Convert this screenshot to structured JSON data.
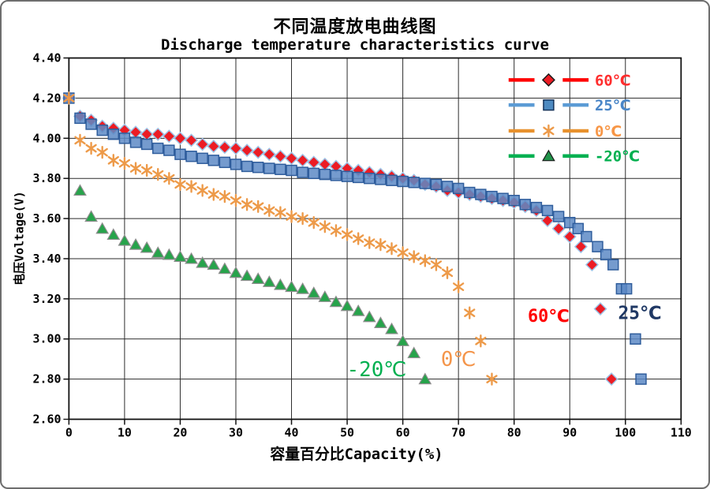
{
  "chart_data": {
    "type": "scatter",
    "title": "不同温度放电曲线图",
    "subtitle": "Discharge temperature characteristics curve",
    "xlabel": "容量百分比Capacity(%)",
    "ylabel": "电压Voltage(V)",
    "xlim": [
      0,
      110
    ],
    "ylim": [
      2.6,
      4.4
    ],
    "xticks": [
      0,
      10,
      20,
      30,
      40,
      50,
      60,
      70,
      80,
      90,
      100,
      110
    ],
    "yticks": [
      4.4,
      4.2,
      4.0,
      3.8,
      3.6,
      3.4,
      3.2,
      3.0,
      2.8,
      2.6
    ],
    "ytick_labels": [
      "4.40",
      "4.20",
      "4.00",
      "3.80",
      "3.60",
      "3.40",
      "3.20",
      "3.00",
      "2.80",
      "2.60"
    ],
    "grid": true,
    "legend_position": "top-right-inside",
    "series": [
      {
        "id": "s60",
        "name": "60℃",
        "marker": "diamond",
        "marker_color": "#EC1C24",
        "marker_stroke": "#9DC3E6",
        "line_color": "#FF0000",
        "label_color": "#FF2D2D",
        "points": [
          [
            0,
            4.2
          ],
          [
            2,
            4.11
          ],
          [
            4,
            4.09
          ],
          [
            6,
            4.06
          ],
          [
            8,
            4.05
          ],
          [
            10,
            4.04
          ],
          [
            12,
            4.03
          ],
          [
            14,
            4.02
          ],
          [
            16,
            4.02
          ],
          [
            18,
            4.01
          ],
          [
            20,
            4.0
          ],
          [
            22,
            3.99
          ],
          [
            24,
            3.97
          ],
          [
            26,
            3.96
          ],
          [
            28,
            3.955
          ],
          [
            30,
            3.95
          ],
          [
            32,
            3.94
          ],
          [
            34,
            3.93
          ],
          [
            36,
            3.92
          ],
          [
            38,
            3.91
          ],
          [
            40,
            3.9
          ],
          [
            42,
            3.89
          ],
          [
            44,
            3.88
          ],
          [
            46,
            3.87
          ],
          [
            48,
            3.86
          ],
          [
            50,
            3.85
          ],
          [
            52,
            3.84
          ],
          [
            54,
            3.83
          ],
          [
            56,
            3.82
          ],
          [
            58,
            3.81
          ],
          [
            60,
            3.8
          ],
          [
            62,
            3.79
          ],
          [
            64,
            3.77
          ],
          [
            66,
            3.76
          ],
          [
            68,
            3.74
          ],
          [
            70,
            3.73
          ],
          [
            72,
            3.72
          ],
          [
            74,
            3.71
          ],
          [
            76,
            3.7
          ],
          [
            78,
            3.69
          ],
          [
            80,
            3.68
          ],
          [
            82,
            3.66
          ],
          [
            84,
            3.64
          ],
          [
            86,
            3.59
          ],
          [
            88,
            3.55
          ],
          [
            90,
            3.51
          ],
          [
            92,
            3.46
          ],
          [
            94,
            3.37
          ],
          [
            95.5,
            3.15
          ],
          [
            97.5,
            2.8
          ]
        ]
      },
      {
        "id": "s25",
        "name": "25℃",
        "marker": "square",
        "marker_color": "#5D8AC6",
        "marker_stroke": "#2F5D9C",
        "line_color": "#5B9BD5",
        "label_color": "#4A86C8",
        "points": [
          [
            0,
            4.2
          ],
          [
            2,
            4.1
          ],
          [
            4,
            4.07
          ],
          [
            6,
            4.04
          ],
          [
            8,
            4.02
          ],
          [
            10,
            4.0
          ],
          [
            12,
            3.98
          ],
          [
            14,
            3.97
          ],
          [
            16,
            3.95
          ],
          [
            18,
            3.94
          ],
          [
            20,
            3.92
          ],
          [
            22,
            3.91
          ],
          [
            24,
            3.9
          ],
          [
            26,
            3.89
          ],
          [
            28,
            3.88
          ],
          [
            30,
            3.87
          ],
          [
            32,
            3.86
          ],
          [
            34,
            3.855
          ],
          [
            36,
            3.85
          ],
          [
            38,
            3.845
          ],
          [
            40,
            3.84
          ],
          [
            42,
            3.83
          ],
          [
            44,
            3.825
          ],
          [
            46,
            3.82
          ],
          [
            48,
            3.815
          ],
          [
            50,
            3.81
          ],
          [
            52,
            3.805
          ],
          [
            54,
            3.8
          ],
          [
            56,
            3.795
          ],
          [
            58,
            3.79
          ],
          [
            60,
            3.785
          ],
          [
            62,
            3.78
          ],
          [
            64,
            3.775
          ],
          [
            66,
            3.77
          ],
          [
            68,
            3.76
          ],
          [
            70,
            3.75
          ],
          [
            72,
            3.73
          ],
          [
            74,
            3.72
          ],
          [
            76,
            3.71
          ],
          [
            78,
            3.7
          ],
          [
            80,
            3.69
          ],
          [
            82,
            3.67
          ],
          [
            84,
            3.655
          ],
          [
            86,
            3.64
          ],
          [
            88,
            3.61
          ],
          [
            90,
            3.58
          ],
          [
            91.5,
            3.55
          ],
          [
            93,
            3.51
          ],
          [
            95,
            3.46
          ],
          [
            96.5,
            3.42
          ],
          [
            97.8,
            3.37
          ],
          [
            99.3,
            3.25
          ],
          [
            100.2,
            3.25
          ],
          [
            101.8,
            3.0
          ],
          [
            102.8,
            2.8
          ]
        ]
      },
      {
        "id": "s0",
        "name": "0℃",
        "marker": "asterisk",
        "marker_color": "#ED9A49",
        "marker_stroke": "#ED9A49",
        "line_color": "#E8912D",
        "label_color": "#F79646",
        "points": [
          [
            0,
            4.2
          ],
          [
            2,
            3.99
          ],
          [
            4,
            3.95
          ],
          [
            6,
            3.93
          ],
          [
            8,
            3.89
          ],
          [
            10,
            3.875
          ],
          [
            12,
            3.85
          ],
          [
            14,
            3.84
          ],
          [
            16,
            3.82
          ],
          [
            18,
            3.8
          ],
          [
            20,
            3.77
          ],
          [
            22,
            3.76
          ],
          [
            24,
            3.74
          ],
          [
            26,
            3.72
          ],
          [
            28,
            3.71
          ],
          [
            30,
            3.69
          ],
          [
            32,
            3.67
          ],
          [
            34,
            3.66
          ],
          [
            36,
            3.64
          ],
          [
            38,
            3.63
          ],
          [
            40,
            3.61
          ],
          [
            42,
            3.6
          ],
          [
            44,
            3.58
          ],
          [
            46,
            3.56
          ],
          [
            48,
            3.54
          ],
          [
            50,
            3.52
          ],
          [
            52,
            3.5
          ],
          [
            54,
            3.48
          ],
          [
            56,
            3.47
          ],
          [
            58,
            3.45
          ],
          [
            60,
            3.43
          ],
          [
            62,
            3.41
          ],
          [
            64,
            3.39
          ],
          [
            66,
            3.37
          ],
          [
            68,
            3.33
          ],
          [
            70,
            3.26
          ],
          [
            72,
            3.13
          ],
          [
            74,
            2.99
          ],
          [
            76,
            2.8
          ]
        ]
      },
      {
        "id": "sm20",
        "name": "-20℃",
        "marker": "triangle",
        "marker_color": "#27A34B",
        "marker_stroke": "#8C8C8C",
        "line_color": "#00B050",
        "label_color": "#00B050",
        "points": [
          [
            2,
            3.74
          ],
          [
            4,
            3.61
          ],
          [
            6,
            3.55
          ],
          [
            8,
            3.52
          ],
          [
            10,
            3.49
          ],
          [
            12,
            3.47
          ],
          [
            14,
            3.455
          ],
          [
            16,
            3.43
          ],
          [
            18,
            3.42
          ],
          [
            20,
            3.41
          ],
          [
            22,
            3.4
          ],
          [
            24,
            3.38
          ],
          [
            26,
            3.37
          ],
          [
            28,
            3.35
          ],
          [
            30,
            3.33
          ],
          [
            32,
            3.315
          ],
          [
            34,
            3.3
          ],
          [
            36,
            3.285
          ],
          [
            38,
            3.27
          ],
          [
            40,
            3.26
          ],
          [
            42,
            3.25
          ],
          [
            44,
            3.23
          ],
          [
            46,
            3.21
          ],
          [
            48,
            3.185
          ],
          [
            50,
            3.165
          ],
          [
            52,
            3.14
          ],
          [
            54,
            3.11
          ],
          [
            56,
            3.08
          ],
          [
            58,
            3.05
          ],
          [
            60,
            2.99
          ],
          [
            62,
            2.93
          ],
          [
            64,
            2.8
          ]
        ]
      }
    ],
    "annotations": [
      {
        "id": "ann-60c",
        "text": "60℃",
        "x": 86.2,
        "y": 3.115,
        "color": "#FF0000",
        "bold": true,
        "size": 22
      },
      {
        "id": "ann-25c",
        "text": "25℃",
        "x": 102.6,
        "y": 3.13,
        "color": "#1F3864",
        "bold": true,
        "size": 23
      },
      {
        "id": "ann-0c",
        "text": "0℃",
        "x": 70.0,
        "y": 2.9,
        "color": "#F4954A",
        "bold": false,
        "size": 26
      },
      {
        "id": "ann-m20c",
        "text": "-20℃",
        "x": 55.3,
        "y": 2.85,
        "color": "#00B050",
        "bold": false,
        "size": 26
      }
    ]
  }
}
